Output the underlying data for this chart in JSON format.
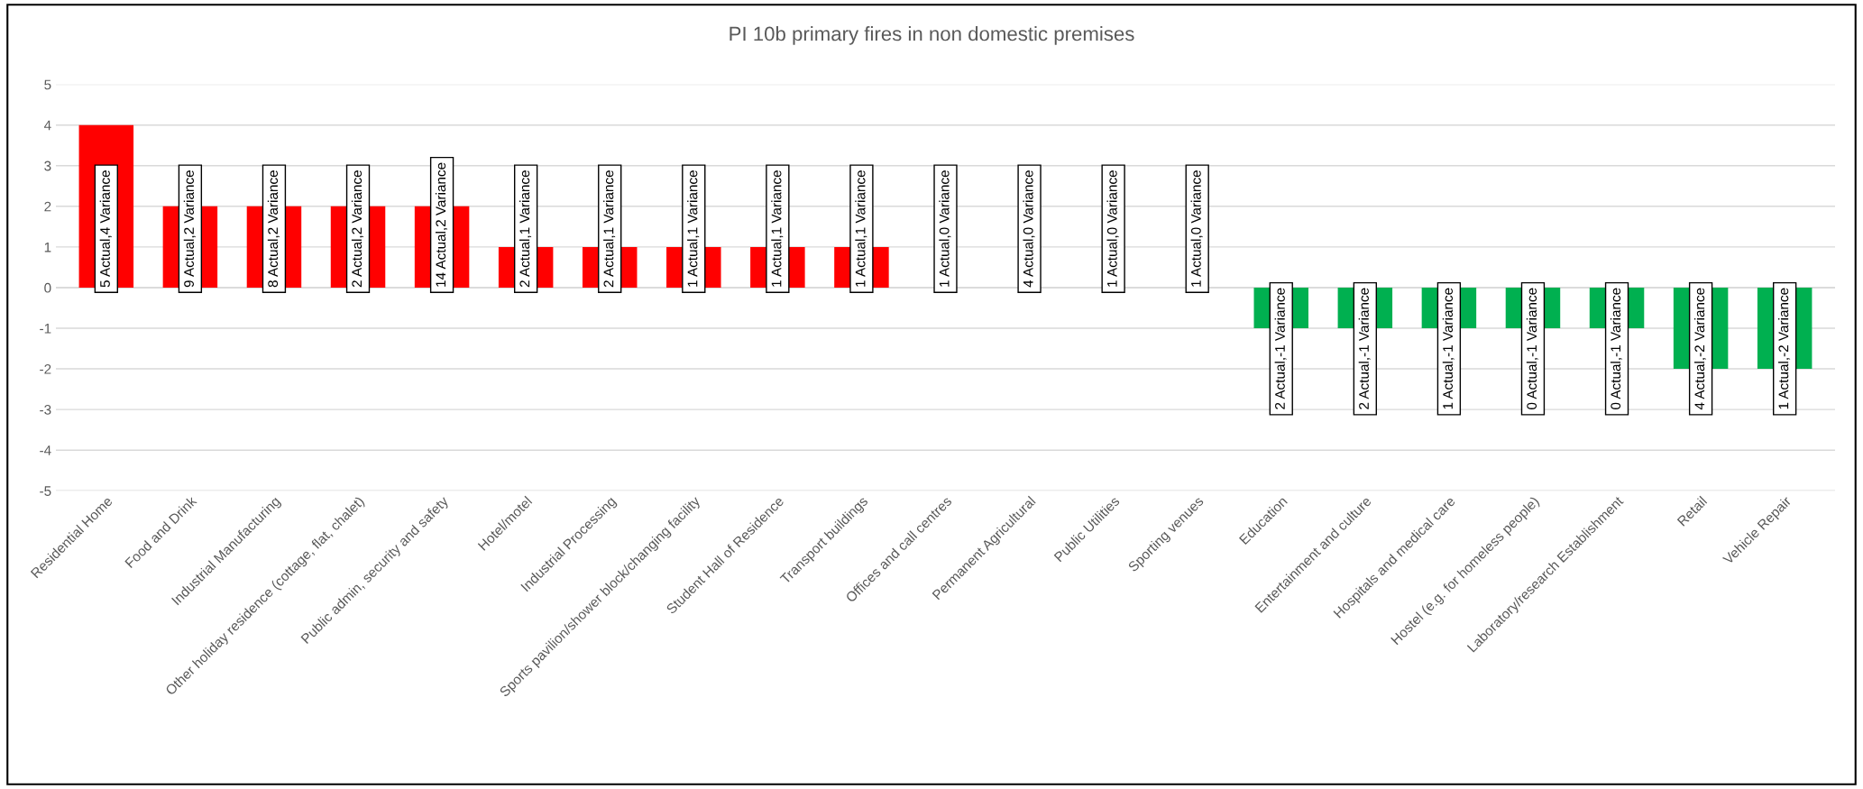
{
  "chart_data": {
    "type": "bar",
    "title": "PI 10b primary fires in non domestic premises",
    "categories": [
      "Residential Home",
      "Food and Drink",
      "Industrial Manufacturing",
      "Other holiday residence (cottage, flat, chalet)",
      "Public admin, security and safety",
      "Hotel/motel",
      "Industrial Processing",
      "Sports pavilion/shower block/changing facility",
      "Student Hall of Residence",
      "Transport buildings",
      "Offices and call centres",
      "Permanent Agricultural",
      "Public Utilities",
      "Sporting venues",
      "Education",
      "Entertainment and culture",
      "Hospitals and medical care",
      "Hostel (e.g. for homeless people)",
      "Laboratory/research Establishment",
      "Retail",
      "Vehicle Repair"
    ],
    "values": [
      4,
      2,
      2,
      2,
      2,
      1,
      1,
      1,
      1,
      1,
      0,
      0,
      0,
      0,
      -1,
      -1,
      -1,
      -1,
      -1,
      -2,
      -2
    ],
    "colors": [
      "#ff0000",
      "#ff0000",
      "#ff0000",
      "#ff0000",
      "#ff0000",
      "#ff0000",
      "#ff0000",
      "#ff0000",
      "#ff0000",
      "#ff0000",
      "#ff0000",
      "#ff0000",
      "#ff0000",
      "#ff0000",
      "#00b050",
      "#00b050",
      "#00b050",
      "#00b050",
      "#00b050",
      "#00b050",
      "#00b050"
    ],
    "value_labels": [
      "5 Actual,4 Variance",
      "9 Actual,2 Variance",
      "8 Actual,2 Variance",
      "2 Actual,2 Variance",
      "14 Actual,2 Variance",
      "2 Actual,1 Variance",
      "2 Actual,1 Variance",
      "1 Actual,1 Variance",
      "1 Actual,1 Variance",
      "1 Actual,1 Variance",
      "1 Actual,0 Variance",
      "4 Actual,0 Variance",
      "1 Actual,0 Variance",
      "1 Actual,0 Variance",
      "2 Actual,-1 Variance",
      "2 Actual,-1 Variance",
      "1 Actual,-1 Variance",
      "0 Actual,-1 Variance",
      "0 Actual,-1 Variance",
      "4 Actual,-2 Variance",
      "1 Actual,-2 Variance"
    ],
    "ylim": [
      -5,
      5
    ],
    "yticks": [
      -5,
      -4,
      -3,
      -2,
      -1,
      0,
      1,
      2,
      3,
      4,
      5
    ],
    "grid": "y",
    "legend": false
  }
}
